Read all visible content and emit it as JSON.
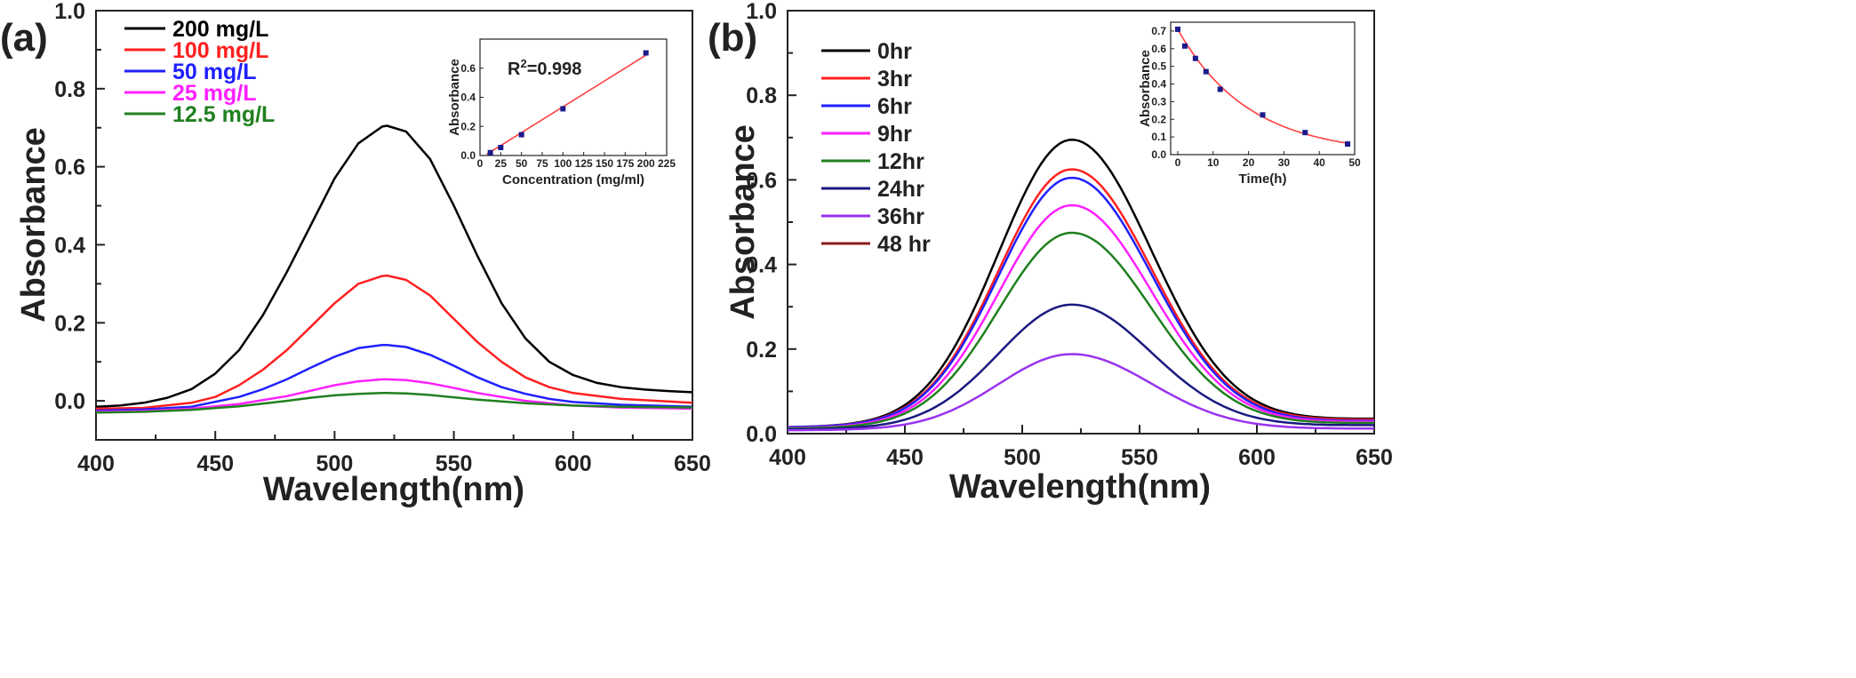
{
  "chart_data": [
    {
      "panel_label": "(a)",
      "type": "line",
      "xlabel": "Wavelength(nm)",
      "ylabel": "Absorbance",
      "xlim": [
        400,
        650
      ],
      "ylim": [
        -0.1,
        1.0
      ],
      "xticks": [
        400,
        450,
        500,
        550,
        600,
        650
      ],
      "yticks": [
        0.0,
        0.2,
        0.4,
        0.6,
        0.8,
        1.0
      ],
      "legend_position": "top-left",
      "series": [
        {
          "name": "200 mg/L",
          "color": "#000000",
          "x": [
            400,
            410,
            420,
            430,
            440,
            450,
            460,
            470,
            480,
            490,
            500,
            510,
            520,
            522,
            530,
            540,
            550,
            560,
            570,
            580,
            590,
            600,
            610,
            620,
            630,
            640,
            650
          ],
          "y": [
            -0.015,
            -0.012,
            -0.005,
            0.008,
            0.03,
            0.07,
            0.13,
            0.22,
            0.33,
            0.45,
            0.57,
            0.66,
            0.703,
            0.705,
            0.69,
            0.62,
            0.5,
            0.37,
            0.25,
            0.16,
            0.1,
            0.066,
            0.046,
            0.035,
            0.029,
            0.025,
            0.022
          ]
        },
        {
          "name": "100 mg/L",
          "color": "#ff2020",
          "x": [
            400,
            420,
            440,
            450,
            460,
            470,
            480,
            490,
            500,
            510,
            520,
            522,
            530,
            540,
            550,
            560,
            570,
            580,
            590,
            600,
            620,
            650
          ],
          "y": [
            -0.02,
            -0.018,
            -0.005,
            0.01,
            0.04,
            0.08,
            0.13,
            0.19,
            0.25,
            0.3,
            0.32,
            0.321,
            0.31,
            0.27,
            0.21,
            0.15,
            0.1,
            0.06,
            0.035,
            0.02,
            0.005,
            -0.005
          ]
        },
        {
          "name": "50 mg/L",
          "color": "#2020ff",
          "x": [
            400,
            420,
            440,
            460,
            470,
            480,
            490,
            500,
            510,
            520,
            522,
            530,
            540,
            550,
            560,
            570,
            580,
            590,
            600,
            620,
            650
          ],
          "y": [
            -0.025,
            -0.022,
            -0.015,
            0.01,
            0.03,
            0.055,
            0.085,
            0.113,
            0.135,
            0.143,
            0.143,
            0.138,
            0.118,
            0.09,
            0.06,
            0.035,
            0.018,
            0.005,
            -0.003,
            -0.01,
            -0.015
          ]
        },
        {
          "name": "25 mg/L",
          "color": "#ff20ff",
          "x": [
            400,
            420,
            440,
            460,
            480,
            490,
            500,
            510,
            520,
            522,
            530,
            540,
            550,
            560,
            580,
            600,
            620,
            650
          ],
          "y": [
            -0.028,
            -0.026,
            -0.02,
            -0.008,
            0.012,
            0.026,
            0.04,
            0.05,
            0.055,
            0.055,
            0.053,
            0.045,
            0.033,
            0.02,
            0.0,
            -0.012,
            -0.017,
            -0.02
          ]
        },
        {
          "name": "12.5 mg/L",
          "color": "#208020",
          "x": [
            400,
            420,
            440,
            460,
            480,
            490,
            500,
            510,
            520,
            522,
            530,
            540,
            550,
            560,
            580,
            600,
            620,
            650
          ],
          "y": [
            -0.03,
            -0.028,
            -0.023,
            -0.014,
            0.0,
            0.008,
            0.014,
            0.018,
            0.02,
            0.02,
            0.019,
            0.015,
            0.009,
            0.003,
            -0.006,
            -0.012,
            -0.015,
            -0.017
          ]
        }
      ],
      "inset": {
        "type": "scatter",
        "xlabel": "Concentration (mg/ml)",
        "ylabel": "Absorbance",
        "xlim": [
          0,
          225
        ],
        "ylim": [
          0,
          0.8
        ],
        "xticks": [
          0,
          25,
          50,
          75,
          100,
          125,
          150,
          175,
          200,
          225
        ],
        "yticks": [
          0.0,
          0.2,
          0.4,
          0.6
        ],
        "annotation": "R",
        "annotation_sup": "2",
        "annotation_rest": "=0.998",
        "points": {
          "x": [
            12.5,
            25,
            50,
            100,
            200
          ],
          "y": [
            0.02,
            0.055,
            0.143,
            0.321,
            0.705
          ]
        },
        "fit_line": {
          "x": [
            8,
            200
          ],
          "y": [
            0.008,
            0.69
          ]
        },
        "marker_color": "#1a1a8c",
        "line_color": "#ff4040"
      }
    },
    {
      "panel_label": "(b)",
      "type": "line",
      "xlabel": "Wavelength(nm)",
      "ylabel": "Absorbance",
      "xlim": [
        400,
        650
      ],
      "ylim": [
        0.0,
        1.0
      ],
      "xticks": [
        400,
        450,
        500,
        550,
        600,
        650
      ],
      "yticks": [
        0.0,
        0.2,
        0.4,
        0.6,
        0.8,
        1.0
      ],
      "legend_position": "top-left",
      "peak_nm": 521,
      "series": [
        {
          "name": "0hr",
          "color": "#000000",
          "peak": 0.695,
          "base": 0.015,
          "tail": 0.035
        },
        {
          "name": "3hr",
          "color": "#ff2020",
          "peak": 0.625,
          "base": 0.015,
          "tail": 0.033
        },
        {
          "name": "6hr",
          "color": "#2020ff",
          "peak": 0.605,
          "base": 0.015,
          "tail": 0.03
        },
        {
          "name": "9hr",
          "color": "#ff20ff",
          "peak": 0.54,
          "base": 0.013,
          "tail": 0.028
        },
        {
          "name": "12hr",
          "color": "#208020",
          "peak": 0.475,
          "base": 0.012,
          "tail": 0.025
        },
        {
          "name": "24hr",
          "color": "#1a1a80",
          "peak": 0.305,
          "base": 0.01,
          "tail": 0.02
        },
        {
          "name": "36hr",
          "color": "#9933ee",
          "peak": 0.188,
          "base": 0.008,
          "tail": 0.012
        },
        {
          "name": "48 hr",
          "color": "#8b1a1a",
          "peak": null,
          "base": null,
          "tail": null
        }
      ],
      "inset": {
        "type": "scatter",
        "xlabel": "Time(h)",
        "ylabel": "Absorbance",
        "xlim": [
          -2,
          50
        ],
        "ylim": [
          0,
          0.75
        ],
        "xticks": [
          0,
          10,
          20,
          30,
          40,
          50
        ],
        "yticks": [
          0.0,
          0.1,
          0.2,
          0.3,
          0.4,
          0.5,
          0.6,
          0.7
        ],
        "points": {
          "x": [
            0,
            2,
            5,
            8,
            12,
            24,
            36,
            48
          ],
          "y": [
            0.71,
            0.615,
            0.545,
            0.47,
            0.37,
            0.225,
            0.125,
            0.06
          ]
        },
        "marker_color": "#1a1a8c",
        "line_color": "#ff4040"
      }
    }
  ]
}
